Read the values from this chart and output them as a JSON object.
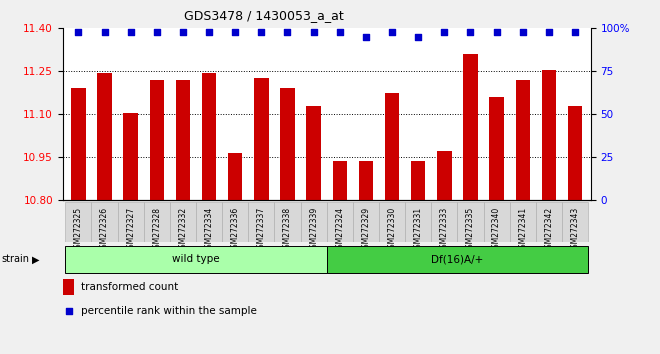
{
  "title": "GDS3478 / 1430053_a_at",
  "categories": [
    "GSM272325",
    "GSM272326",
    "GSM272327",
    "GSM272328",
    "GSM272332",
    "GSM272334",
    "GSM272336",
    "GSM272337",
    "GSM272338",
    "GSM272339",
    "GSM272324",
    "GSM272329",
    "GSM272330",
    "GSM272331",
    "GSM272333",
    "GSM272335",
    "GSM272340",
    "GSM272341",
    "GSM272342",
    "GSM272343"
  ],
  "bar_values": [
    11.19,
    11.245,
    11.105,
    11.22,
    11.22,
    11.245,
    10.965,
    11.225,
    11.19,
    11.13,
    10.935,
    10.935,
    11.175,
    10.935,
    10.97,
    11.31,
    11.16,
    11.22,
    11.255,
    11.13
  ],
  "percentile_values": [
    98,
    98,
    98,
    98,
    98,
    98,
    98,
    98,
    98,
    98,
    98,
    95,
    98,
    95,
    98,
    98,
    98,
    98,
    98,
    98
  ],
  "bar_color": "#CC0000",
  "dot_color": "#0000CC",
  "ylim_left": [
    10.8,
    11.4
  ],
  "ylim_right": [
    0,
    100
  ],
  "yticks_left": [
    10.8,
    10.95,
    11.1,
    11.25,
    11.4
  ],
  "yticks_right": [
    0,
    25,
    50,
    75,
    100
  ],
  "grid_values": [
    10.95,
    11.1,
    11.25
  ],
  "wild_type_count": 10,
  "wild_type_label": "wild type",
  "df_label": "Df(16)A/+",
  "strain_label": "strain",
  "legend_bar_label": "transformed count",
  "legend_dot_label": "percentile rank within the sample",
  "background_color": "#f0f0f0",
  "plot_bg_color": "#ffffff",
  "cell_bg_color": "#d8d8d8",
  "group_wt_color": "#aaffaa",
  "group_df_color": "#44cc44",
  "right_ytick_labels": [
    "0",
    "25",
    "50",
    "75",
    "100%"
  ]
}
